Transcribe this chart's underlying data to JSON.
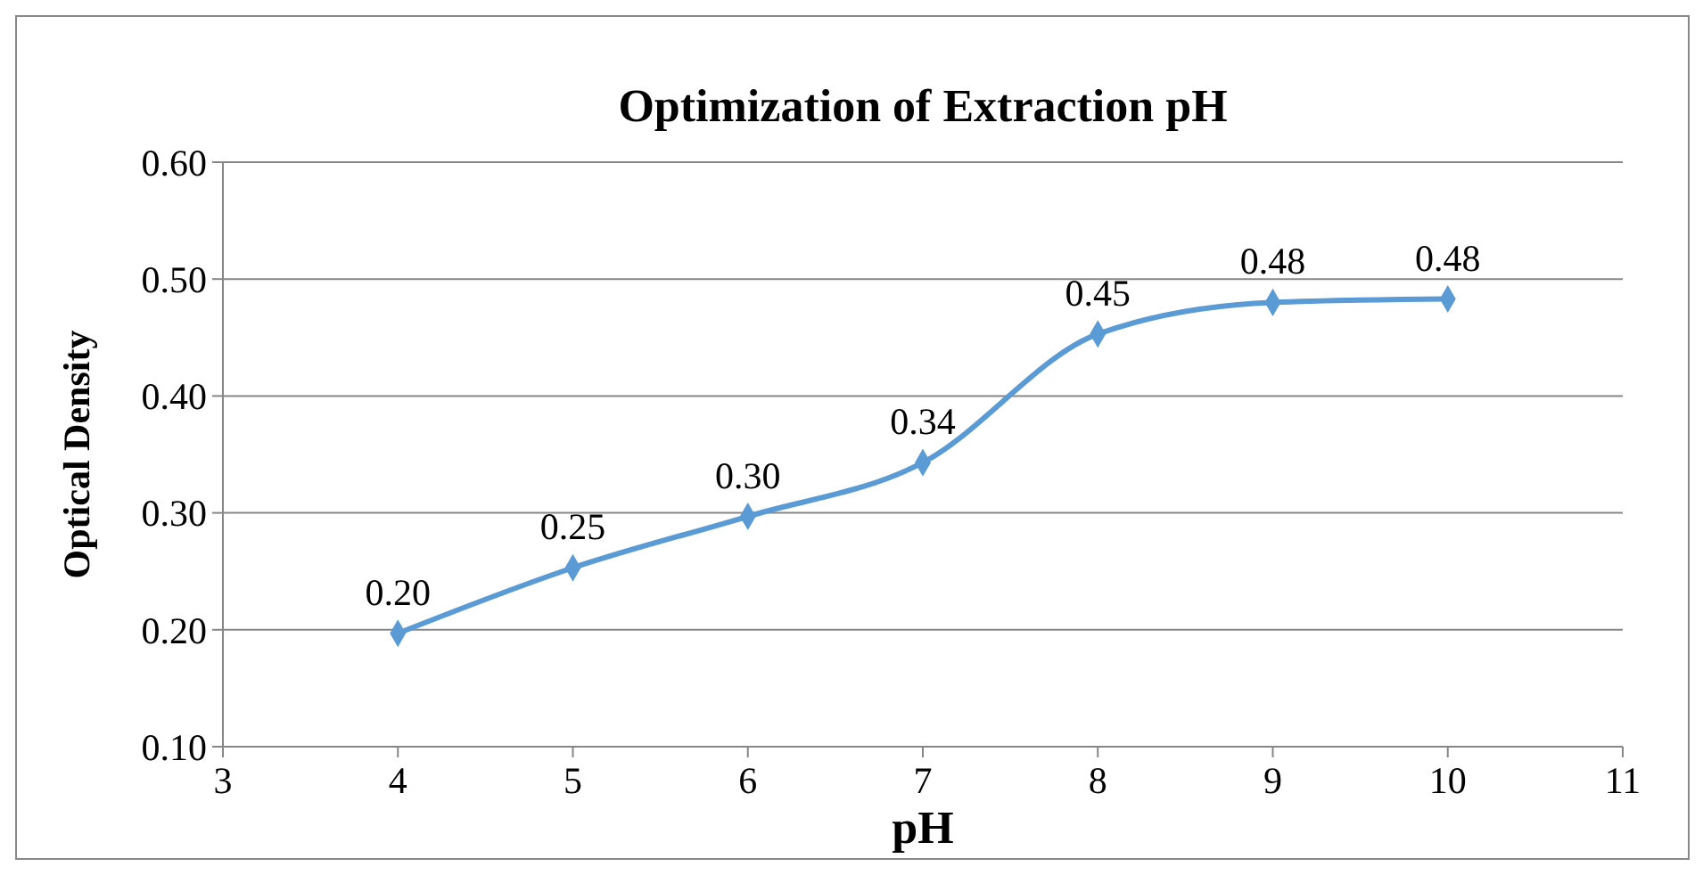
{
  "chart_data": {
    "type": "line",
    "title": "Optimization of Extraction pH",
    "xlabel": "pH",
    "ylabel": "Optical Density",
    "x": [
      4,
      5,
      6,
      7,
      8,
      9,
      10
    ],
    "series": [
      {
        "color": "#5b9bd5",
        "values": [
          0.197,
          0.253,
          0.297,
          0.343,
          0.453,
          0.48,
          0.483
        ],
        "value_labels": [
          "0.20",
          "0.25",
          "0.30",
          "0.34",
          "0.45",
          "0.48",
          "0.48"
        ]
      }
    ],
    "xlim": [
      3,
      11
    ],
    "xticks": [
      3,
      4,
      5,
      6,
      7,
      8,
      9,
      10,
      11
    ],
    "ylim": [
      0.1,
      0.6
    ],
    "yticks": [
      {
        "value": 0.1,
        "label": "0.10"
      },
      {
        "value": 0.2,
        "label": "0.20"
      },
      {
        "value": 0.3,
        "label": "0.30"
      },
      {
        "value": 0.4,
        "label": "0.40"
      },
      {
        "value": 0.5,
        "label": "0.50"
      },
      {
        "value": 0.6,
        "label": "0.60"
      }
    ],
    "grid": "y",
    "marker": "diamond",
    "line_style": "solid"
  }
}
